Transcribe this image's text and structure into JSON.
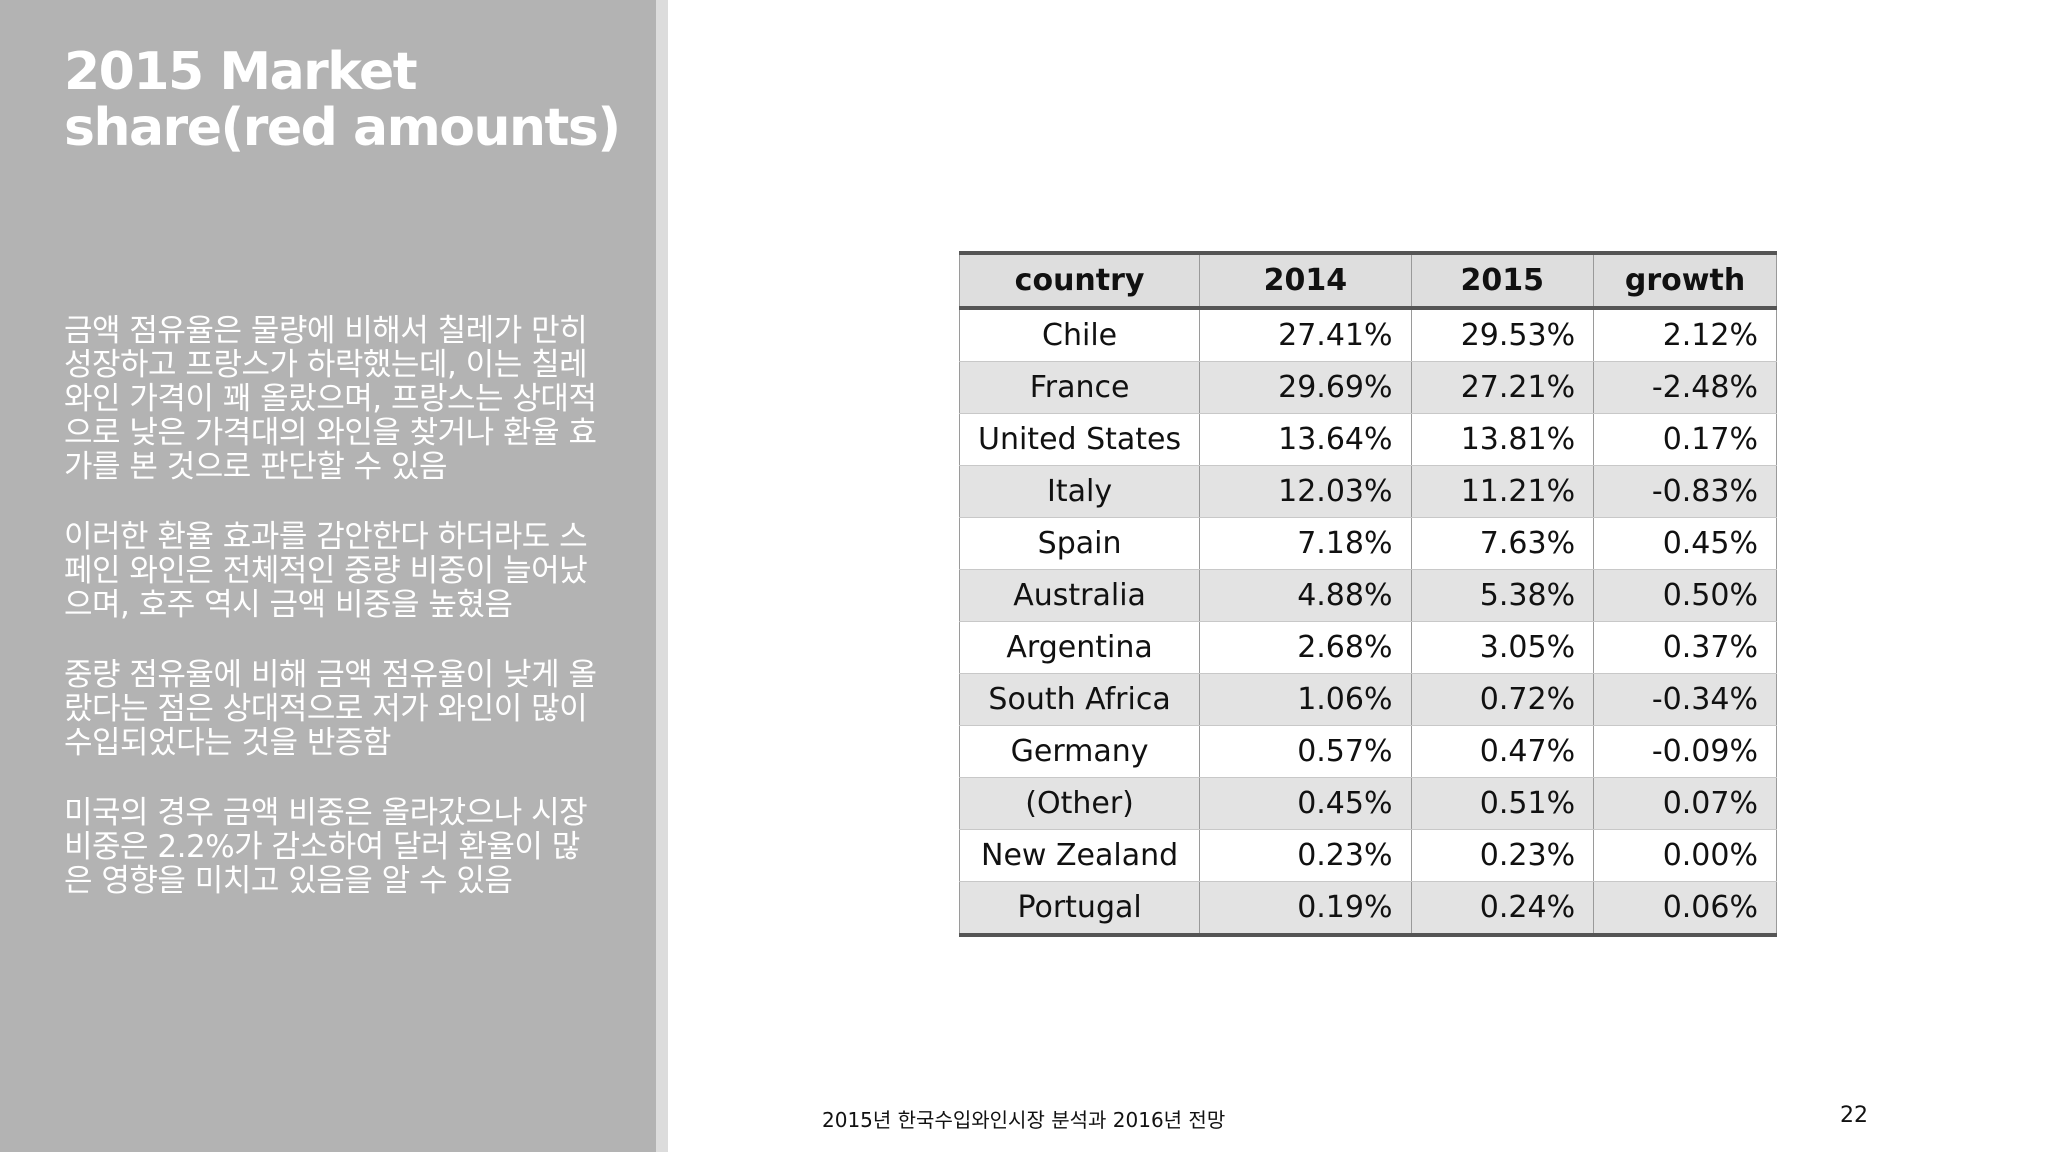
{
  "slide": {
    "title": "2015 Market share(red amounts)",
    "bullets": [
      "금액 점유율은 물량에 비해서 칠레가 만히 성장하고 프랑스가 하락했는데, 이는 칠레 와인 가격이 꽤 올랐으며, 프랑스는 상대적으로 낮은 가격대의 와인을 찾거나 환율 효가를 본 것으로 판단할 수 있음",
      "이러한 환율 효과를 감안한다 하더라도 스페인 와인은 전체적인 중량 비중이 늘어났으며, 호주 역시 금액 비중을 높혔음",
      "중량 점유율에 비해 금액 점유율이 낮게 올랐다는 점은 상대적으로 저가 와인이 많이 수입되었다는 것을 반증함",
      "미국의 경우 금액 비중은 올라갔으나 시장 비중은 2.2%가 감소하여 달러 환율이 많은 영향을 미치고 있음을 알 수 있음"
    ]
  },
  "table": {
    "headers": [
      "country",
      "2014",
      "2015",
      "growth"
    ],
    "rows": [
      {
        "country": "Chile",
        "y2014": "27.41%",
        "y2015": "29.53%",
        "growth": "2.12%"
      },
      {
        "country": "France",
        "y2014": "29.69%",
        "y2015": "27.21%",
        "growth": "-2.48%"
      },
      {
        "country": "United States",
        "y2014": "13.64%",
        "y2015": "13.81%",
        "growth": "0.17%"
      },
      {
        "country": "Italy",
        "y2014": "12.03%",
        "y2015": "11.21%",
        "growth": "-0.83%"
      },
      {
        "country": "Spain",
        "y2014": "7.18%",
        "y2015": "7.63%",
        "growth": "0.45%"
      },
      {
        "country": "Australia",
        "y2014": "4.88%",
        "y2015": "5.38%",
        "growth": "0.50%"
      },
      {
        "country": "Argentina",
        "y2014": "2.68%",
        "y2015": "3.05%",
        "growth": "0.37%"
      },
      {
        "country": "South Africa",
        "y2014": "1.06%",
        "y2015": "0.72%",
        "growth": "-0.34%"
      },
      {
        "country": "Germany",
        "y2014": "0.57%",
        "y2015": "0.47%",
        "growth": "-0.09%"
      },
      {
        "country": "(Other)",
        "y2014": "0.45%",
        "y2015": "0.51%",
        "growth": "0.07%"
      },
      {
        "country": "New Zealand",
        "y2014": "0.23%",
        "y2015": "0.23%",
        "growth": "0.00%"
      },
      {
        "country": "Portugal",
        "y2014": "0.19%",
        "y2015": "0.24%",
        "growth": "0.06%"
      }
    ]
  },
  "footer": {
    "text": "2015년 한국수입와인시장 분석과 2016년 전망",
    "page_number": "22"
  },
  "colors": {
    "sidebar": "#b3b3b3",
    "header_fill": "#dedede",
    "stripe_fill": "#e3e3e3",
    "rule": "#555555"
  }
}
